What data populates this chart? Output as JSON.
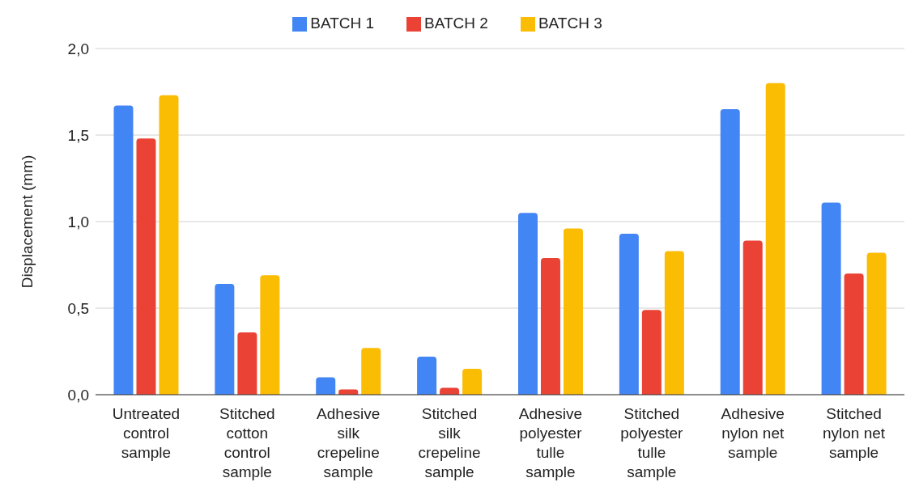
{
  "chart_data": {
    "type": "bar",
    "ylabel": "Displacement (mm)",
    "categories": [
      "Untreated control sample",
      "Stitched cotton control sample",
      "Adhesive silk crepeline sample",
      "Stitched silk crepeline sample",
      "Adhesive polyester tulle sample",
      "Stitched polyester tulle sample",
      "Adhesive nylon net sample",
      "Stitched nylon net sample"
    ],
    "series": [
      {
        "name": "BATCH 1",
        "color": "#4285f4",
        "values": [
          1.67,
          0.64,
          0.1,
          0.22,
          1.05,
          0.93,
          1.65,
          1.11
        ]
      },
      {
        "name": "BATCH 2",
        "color": "#ea4335",
        "values": [
          1.48,
          0.36,
          0.03,
          0.04,
          0.79,
          0.49,
          0.89,
          0.7
        ]
      },
      {
        "name": "BATCH 3",
        "color": "#fbbc04",
        "values": [
          1.73,
          0.69,
          0.27,
          0.15,
          0.96,
          0.83,
          1.8,
          0.82
        ]
      }
    ],
    "ylim": [
      0,
      2
    ],
    "yticks": [
      {
        "value": 0,
        "label": "0,0"
      },
      {
        "value": 0.5,
        "label": "0,5"
      },
      {
        "value": 1,
        "label": "1,0"
      },
      {
        "value": 1.5,
        "label": "1,5"
      },
      {
        "value": 2,
        "label": "2,0"
      }
    ],
    "grid": "y",
    "legend": "top"
  }
}
